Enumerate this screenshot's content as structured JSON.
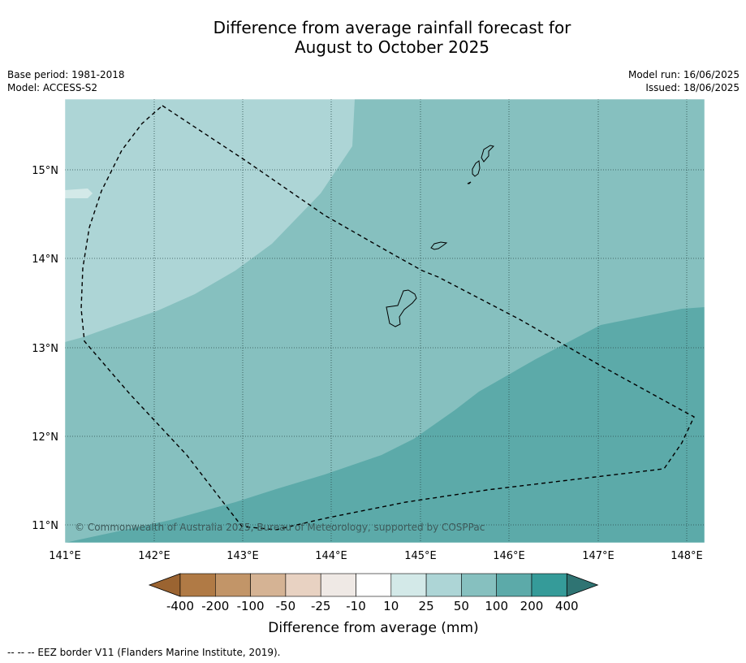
{
  "title": {
    "line1": "Difference from average rainfall forecast for",
    "line2": "August to October 2025"
  },
  "meta_left": {
    "base_period": "Base period: 1981-2018",
    "model": "Model: ACCESS-S2"
  },
  "meta_right": {
    "model_run": "Model run: 16/06/2025",
    "issued": "Issued: 18/06/2025"
  },
  "map": {
    "lon_range": [
      141,
      148.2
    ],
    "lat_range": [
      10.8,
      15.8
    ],
    "x_ticks": [
      "141°E",
      "142°E",
      "143°E",
      "144°E",
      "145°E",
      "146°E",
      "147°E",
      "148°E"
    ],
    "y_ticks": [
      "11°N",
      "12°N",
      "13°N",
      "14°N",
      "15°N"
    ],
    "copyright": "© Commonwealth of Australia 2025, Bureau of Meteorology, supported by COSPPac"
  },
  "colorbar": {
    "labels": [
      "-400",
      "-200",
      "-100",
      "-50",
      "-25",
      "-10",
      "10",
      "25",
      "50",
      "100",
      "200",
      "400"
    ],
    "colors": [
      "#9b6431",
      "#b07a45",
      "#c29568",
      "#d5b394",
      "#e8d2c2",
      "#efe9e5",
      "#ffffff",
      "#d3e9e8",
      "#add5d6",
      "#86c0bf",
      "#5caaa9",
      "#359b99",
      "#2f7473"
    ],
    "title": "Difference from average (mm)"
  },
  "footer": "--  --  -- EEZ border V11 (Flanders Marine Institute, 2019)."
}
